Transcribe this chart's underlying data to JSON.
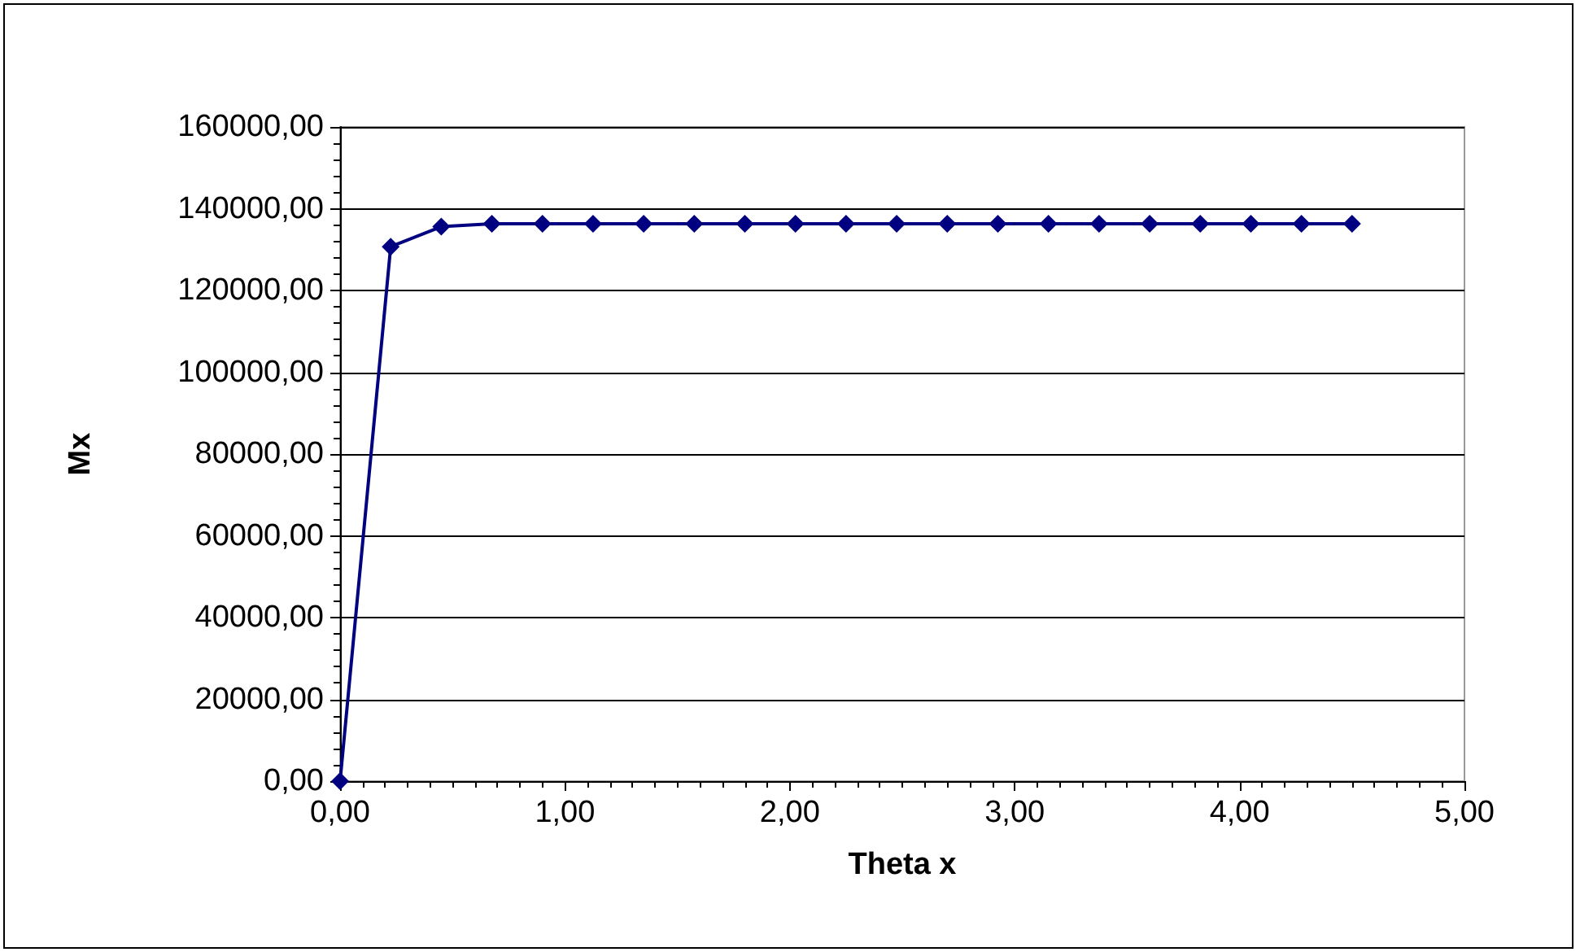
{
  "chart_data": {
    "type": "line",
    "xlabel": "Theta x",
    "ylabel": "Mx",
    "x": [
      0,
      0.225,
      0.45,
      0.675,
      0.9,
      1.125,
      1.35,
      1.575,
      1.8,
      2.025,
      2.25,
      2.475,
      2.7,
      2.925,
      3.15,
      3.375,
      3.6,
      3.825,
      4.05,
      4.275,
      4.5
    ],
    "series": [
      {
        "color": "#000080",
        "values": [
          0,
          130700,
          135600,
          136300,
          136300,
          136300,
          136300,
          136300,
          136300,
          136300,
          136300,
          136300,
          136300,
          136300,
          136300,
          136300,
          136300,
          136300,
          136300,
          136300,
          136300
        ]
      }
    ],
    "xlim": [
      0,
      5
    ],
    "xticks": [
      {
        "value": 0,
        "label": "0,00"
      },
      {
        "value": 1,
        "label": "1,00"
      },
      {
        "value": 2,
        "label": "2,00"
      },
      {
        "value": 3,
        "label": "3,00"
      },
      {
        "value": 4,
        "label": "4,00"
      },
      {
        "value": 5,
        "label": "5,00"
      }
    ],
    "ylim": [
      0,
      160000
    ],
    "yticks": [
      {
        "value": 0,
        "label": "0,00"
      },
      {
        "value": 20000,
        "label": "20000,00"
      },
      {
        "value": 40000,
        "label": "40000,00"
      },
      {
        "value": 60000,
        "label": "60000,00"
      },
      {
        "value": 80000,
        "label": "80000,00"
      },
      {
        "value": 100000,
        "label": "100000,00"
      },
      {
        "value": 120000,
        "label": "120000,00"
      },
      {
        "value": 140000,
        "label": "140000,00"
      },
      {
        "value": 160000,
        "label": "160000,00"
      }
    ],
    "grid": "y",
    "marker": "diamond",
    "line_style": "solid"
  }
}
